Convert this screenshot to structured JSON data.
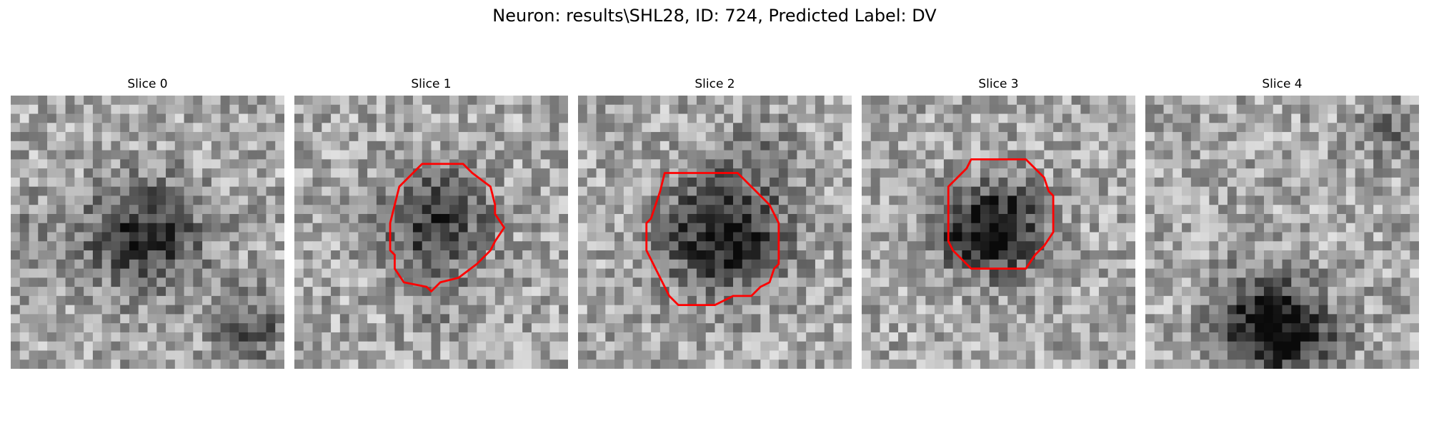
{
  "figure": {
    "title": "Neuron: results\\SHL28, ID: 724, Predicted Label: DV"
  },
  "panels": [
    {
      "title": "Slice 0",
      "has_outline": false,
      "outline_color": "#ff0000"
    },
    {
      "title": "Slice 1",
      "has_outline": true,
      "outline_color": "#ff0000"
    },
    {
      "title": "Slice 2",
      "has_outline": true,
      "outline_color": "#ff0000"
    },
    {
      "title": "Slice 3",
      "has_outline": true,
      "outline_color": "#ff0000"
    },
    {
      "title": "Slice 4",
      "has_outline": false,
      "outline_color": "#ff0000"
    }
  ]
}
